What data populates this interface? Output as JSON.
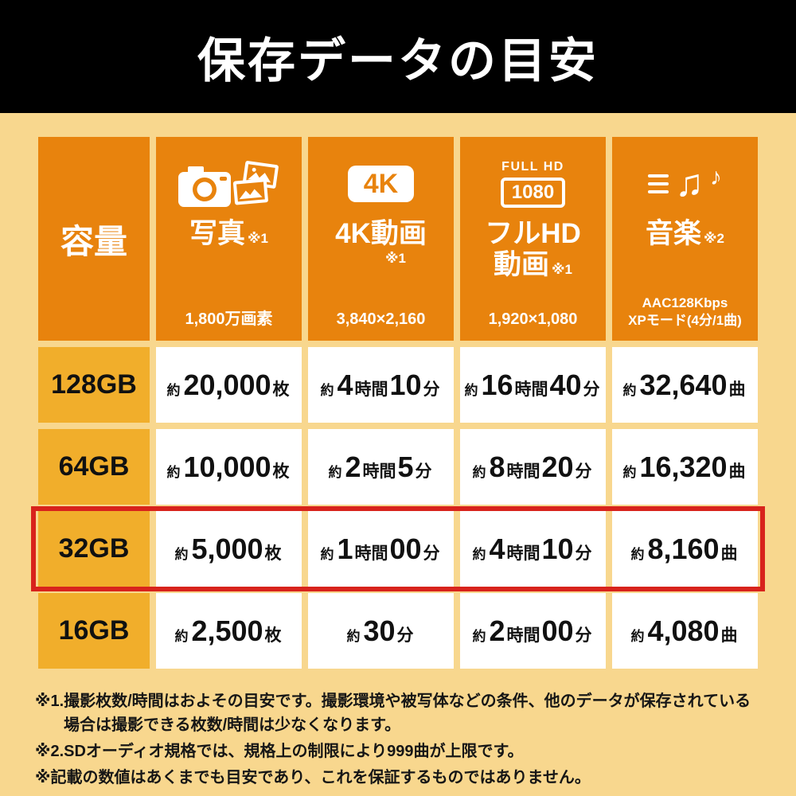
{
  "title_bar": {
    "title": "保存データの目安"
  },
  "chart_data": {
    "type": "table",
    "title": "保存データの目安",
    "columns": [
      {
        "key": "capacity",
        "label": "容量"
      },
      {
        "key": "photo",
        "label": "写真",
        "note": "※1",
        "subtitle": "1,800万画素",
        "icon": "camera-photos-icon"
      },
      {
        "key": "video_4k",
        "label": "4K動画",
        "note": "※1",
        "subtitle": "3,840×2,160",
        "icon": "4k-badge-icon",
        "badge": "4K"
      },
      {
        "key": "video_full_hd",
        "label_line1": "フルHD",
        "label_line2": "動画",
        "note": "※1",
        "subtitle": "1,920×1,080",
        "icon": "fullhd-badge-icon",
        "badge_top": "FULL HD",
        "badge": "1080"
      },
      {
        "key": "music",
        "label": "音楽",
        "note": "※2",
        "subtitle": "AAC128Kbps\nXPモード(4分/1曲)",
        "icon": "music-notes-icon"
      }
    ],
    "rows": [
      {
        "capacity": "128GB",
        "highlight": false,
        "cells": [
          [
            [
              "約",
              "approx"
            ],
            [
              "20,000",
              "num"
            ],
            [
              "枚",
              "unit"
            ]
          ],
          [
            [
              "約",
              "approx"
            ],
            [
              "4",
              "num"
            ],
            [
              "時間",
              "unit"
            ],
            [
              "10",
              "num"
            ],
            [
              "分",
              "unit"
            ]
          ],
          [
            [
              "約",
              "approx"
            ],
            [
              "16",
              "num"
            ],
            [
              "時間",
              "unit"
            ],
            [
              "40",
              "num"
            ],
            [
              "分",
              "unit"
            ]
          ],
          [
            [
              "約",
              "approx"
            ],
            [
              "32,640",
              "num"
            ],
            [
              "曲",
              "unit"
            ]
          ]
        ]
      },
      {
        "capacity": "64GB",
        "highlight": false,
        "cells": [
          [
            [
              "約",
              "approx"
            ],
            [
              "10,000",
              "num"
            ],
            [
              "枚",
              "unit"
            ]
          ],
          [
            [
              "約",
              "approx"
            ],
            [
              "2",
              "num"
            ],
            [
              "時間",
              "unit"
            ],
            [
              "5",
              "num"
            ],
            [
              "分",
              "unit"
            ]
          ],
          [
            [
              "約",
              "approx"
            ],
            [
              "8",
              "num"
            ],
            [
              "時間",
              "unit"
            ],
            [
              "20",
              "num"
            ],
            [
              "分",
              "unit"
            ]
          ],
          [
            [
              "約",
              "approx"
            ],
            [
              "16,320",
              "num"
            ],
            [
              "曲",
              "unit"
            ]
          ]
        ]
      },
      {
        "capacity": "32GB",
        "highlight": true,
        "cells": [
          [
            [
              "約",
              "approx"
            ],
            [
              "5,000",
              "num"
            ],
            [
              "枚",
              "unit"
            ]
          ],
          [
            [
              "約",
              "approx"
            ],
            [
              "1",
              "num"
            ],
            [
              "時間",
              "unit"
            ],
            [
              "00",
              "num"
            ],
            [
              "分",
              "unit"
            ]
          ],
          [
            [
              "約",
              "approx"
            ],
            [
              "4",
              "num"
            ],
            [
              "時間",
              "unit"
            ],
            [
              "10",
              "num"
            ],
            [
              "分",
              "unit"
            ]
          ],
          [
            [
              "約",
              "approx"
            ],
            [
              "8,160",
              "num"
            ],
            [
              "曲",
              "unit"
            ]
          ]
        ]
      },
      {
        "capacity": "16GB",
        "highlight": false,
        "cells": [
          [
            [
              "約",
              "approx"
            ],
            [
              "2,500",
              "num"
            ],
            [
              "枚",
              "unit"
            ]
          ],
          [
            [
              "約",
              "approx"
            ],
            [
              "30",
              "num"
            ],
            [
              "分",
              "unit"
            ]
          ],
          [
            [
              "約",
              "approx"
            ],
            [
              "2",
              "num"
            ],
            [
              "時間",
              "unit"
            ],
            [
              "00",
              "num"
            ],
            [
              "分",
              "unit"
            ]
          ],
          [
            [
              "約",
              "approx"
            ],
            [
              "4,080",
              "num"
            ],
            [
              "曲",
              "unit"
            ]
          ]
        ]
      }
    ],
    "highlighted_row": "32GB"
  },
  "footnotes": [
    "※1.撮影枚数/時間はおよその目安です。撮影環境や被写体などの条件、他のデータが保存されている場合は撮影できる枚数/時間は少なくなります。",
    "※2.SDオーディオ規格では、規格上の制限により999曲が上限です。",
    "※記載の数値はあくまでも目安であり、これを保証するものではありません。"
  ],
  "colors": {
    "page_background": "#f8d78e",
    "title_bar_background": "#000000",
    "column_header_orange": "#e8830d",
    "row_label_gold": "#f1ae2b",
    "cell_white": "#ffffff",
    "highlight_red": "#d8231c",
    "text_dark": "#111111"
  }
}
